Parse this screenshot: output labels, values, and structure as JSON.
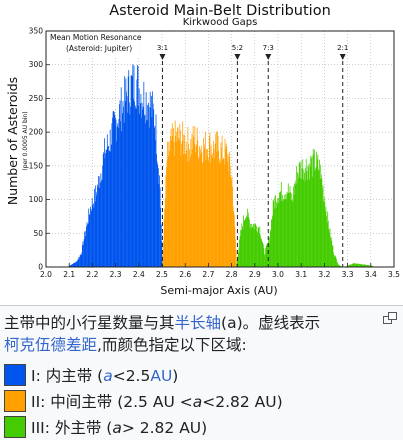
{
  "chart_data": {
    "type": "bar",
    "title": "Asteroid Main-Belt Distribution",
    "subtitle": "Kirkwood Gaps",
    "xlabel": "Semi-major Axis (AU)",
    "ylabel": "Number of Asteroids",
    "ylabel_sub": "(per 0.0005 AU bin)",
    "xlim": [
      2.0,
      3.5
    ],
    "ylim": [
      0,
      350
    ],
    "xticks": [
      "2.0",
      "2.1",
      "2.2",
      "2.3",
      "2.4",
      "2.5",
      "2.6",
      "2.7",
      "2.8",
      "2.9",
      "3.0",
      "3.1",
      "3.2",
      "3.3",
      "3.4",
      "3.5"
    ],
    "yticks": [
      "0",
      "50",
      "100",
      "150",
      "200",
      "250",
      "300",
      "350"
    ],
    "annotation": [
      "Mean Motion Resonance",
      "(Asteroid: Jupiter)"
    ],
    "resonances": [
      {
        "label": "3:1",
        "x": 2.502
      },
      {
        "label": "5:2",
        "x": 2.825
      },
      {
        "label": "7:3",
        "x": 2.958
      },
      {
        "label": "2:1",
        "x": 3.279
      }
    ],
    "series": [
      {
        "name": "I",
        "color": "#0055ee",
        "x": [
          2.1,
          2.13,
          2.15,
          2.17,
          2.19,
          2.21,
          2.23,
          2.25,
          2.27,
          2.29,
          2.31,
          2.33,
          2.35,
          2.37,
          2.39,
          2.41,
          2.43,
          2.45,
          2.47,
          2.49,
          2.5
        ],
        "values": [
          2,
          8,
          20,
          55,
          88,
          105,
          132,
          168,
          185,
          205,
          225,
          240,
          258,
          270,
          275,
          255,
          250,
          240,
          215,
          120,
          5
        ]
      },
      {
        "name": "II",
        "color": "#ffa000",
        "x": [
          2.5,
          2.52,
          2.54,
          2.56,
          2.58,
          2.6,
          2.62,
          2.64,
          2.66,
          2.68,
          2.7,
          2.72,
          2.74,
          2.76,
          2.78,
          2.8,
          2.82
        ],
        "values": [
          5,
          160,
          185,
          192,
          190,
          185,
          180,
          190,
          180,
          178,
          182,
          175,
          178,
          170,
          168,
          132,
          10
        ]
      },
      {
        "name": "III",
        "color": "#44cc00",
        "x": [
          2.82,
          2.84,
          2.86,
          2.88,
          2.9,
          2.92,
          2.94,
          2.96,
          2.98,
          3.0,
          3.02,
          3.04,
          3.06,
          3.08,
          3.1,
          3.12,
          3.14,
          3.16,
          3.18,
          3.2,
          3.22,
          3.24,
          3.26,
          3.28,
          3.3,
          3.32,
          3.34,
          3.36,
          3.38,
          3.4,
          3.42
        ],
        "values": [
          5,
          55,
          82,
          65,
          62,
          58,
          20,
          40,
          95,
          110,
          112,
          115,
          100,
          140,
          148,
          150,
          152,
          155,
          145,
          100,
          55,
          20,
          3,
          0,
          2,
          5,
          5,
          4,
          3,
          2,
          0
        ]
      }
    ]
  },
  "caption": {
    "line1_pre": "主带中的小行星数量与其",
    "line1_link": "半长轴",
    "line1_post": "(a)。虚线表示",
    "line2_link": "柯克伍德差距",
    "line2_post": ",而颜色指定以下区域:"
  },
  "legend": [
    {
      "color": "#0055ee",
      "prefix": "I: 内主带 (",
      "var": "a",
      "mid": "<2.5",
      "link": "AU",
      "suffix": ")"
    },
    {
      "color": "#ffa000",
      "prefix": "II: 中间主带 (2.5 AU <",
      "var": "a",
      "mid": "<2.82 AU)",
      "link": "",
      "suffix": ""
    },
    {
      "color": "#44cc00",
      "prefix": "III: 外主带 (",
      "var": "a",
      "mid": "> 2.82 AU)",
      "link": "",
      "suffix": ""
    }
  ]
}
